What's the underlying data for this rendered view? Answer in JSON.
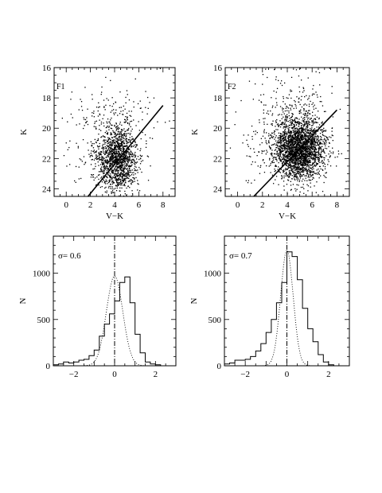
{
  "chart_data": [
    {
      "id": "F1",
      "type": "scatter",
      "panel_label": "F1",
      "xlabel": "V−K",
      "ylabel": "K",
      "xlim": [
        -1,
        9
      ],
      "ylim": [
        24.5,
        16
      ],
      "xticks": [
        0,
        2,
        4,
        6,
        8
      ],
      "yticks": [
        16,
        18,
        20,
        22,
        24
      ],
      "point_clouds": [
        {
          "center": [
            4.2,
            22.0
          ],
          "spread": [
            0.85,
            1.05
          ],
          "count": 1400
        },
        {
          "center": [
            4.0,
            19.2
          ],
          "spread": [
            1.8,
            1.1
          ],
          "count": 160
        },
        {
          "center": [
            1.5,
            21.5
          ],
          "spread": [
            1.0,
            1.3
          ],
          "count": 40
        }
      ],
      "fit_line": {
        "x": [
          1.8,
          8.0
        ],
        "y": [
          24.5,
          18.5
        ]
      }
    },
    {
      "id": "F2",
      "type": "scatter",
      "panel_label": "F2",
      "xlabel": "V−K",
      "ylabel": "K",
      "xlim": [
        -1,
        9
      ],
      "ylim": [
        24.5,
        16
      ],
      "xticks": [
        0,
        2,
        4,
        6,
        8
      ],
      "yticks": [
        16,
        18,
        20,
        22,
        24
      ],
      "point_clouds": [
        {
          "center": [
            4.9,
            21.3
          ],
          "spread": [
            1.05,
            1.0
          ],
          "count": 2600
        },
        {
          "center": [
            4.5,
            18.5
          ],
          "spread": [
            1.6,
            1.2
          ],
          "count": 170
        },
        {
          "center": [
            1.5,
            21.8
          ],
          "spread": [
            0.9,
            1.2
          ],
          "count": 40
        }
      ],
      "fit_line": {
        "x": [
          1.3,
          8.0
        ],
        "y": [
          24.5,
          18.8
        ]
      }
    },
    {
      "id": "H1",
      "type": "histogram",
      "annotation": "σ= 0.6",
      "xlabel": "",
      "ylabel": "N",
      "xlim": [
        -3,
        3
      ],
      "ylim": [
        0,
        1400
      ],
      "xticks": [
        -2,
        0,
        2
      ],
      "yticks": [
        0,
        500,
        1000
      ],
      "bin_width": 0.25,
      "bin_start": -3.0,
      "solid_counts": [
        10,
        20,
        40,
        30,
        40,
        60,
        70,
        110,
        170,
        320,
        450,
        560,
        700,
        900,
        960,
        680,
        340,
        140,
        40,
        20,
        10,
        0,
        0,
        0
      ],
      "dotted_gaussian": {
        "mu": 0.0,
        "sigma": 0.4,
        "peak": 970
      },
      "vline_x": 0
    },
    {
      "id": "H2",
      "type": "histogram",
      "annotation": "σ= 0.7",
      "xlabel": "",
      "ylabel": "N",
      "xlim": [
        -3,
        3
      ],
      "ylim": [
        0,
        1400
      ],
      "xticks": [
        -2,
        0,
        2
      ],
      "yticks": [
        0,
        500,
        1000
      ],
      "bin_width": 0.25,
      "bin_start": -3.0,
      "solid_counts": [
        20,
        30,
        60,
        60,
        70,
        100,
        160,
        240,
        360,
        500,
        680,
        900,
        1230,
        1180,
        930,
        620,
        400,
        260,
        120,
        40,
        10,
        0,
        0,
        0
      ],
      "dotted_gaussian": {
        "mu": 0.0,
        "sigma": 0.3,
        "peak": 1250
      },
      "vline_x": 0
    }
  ]
}
